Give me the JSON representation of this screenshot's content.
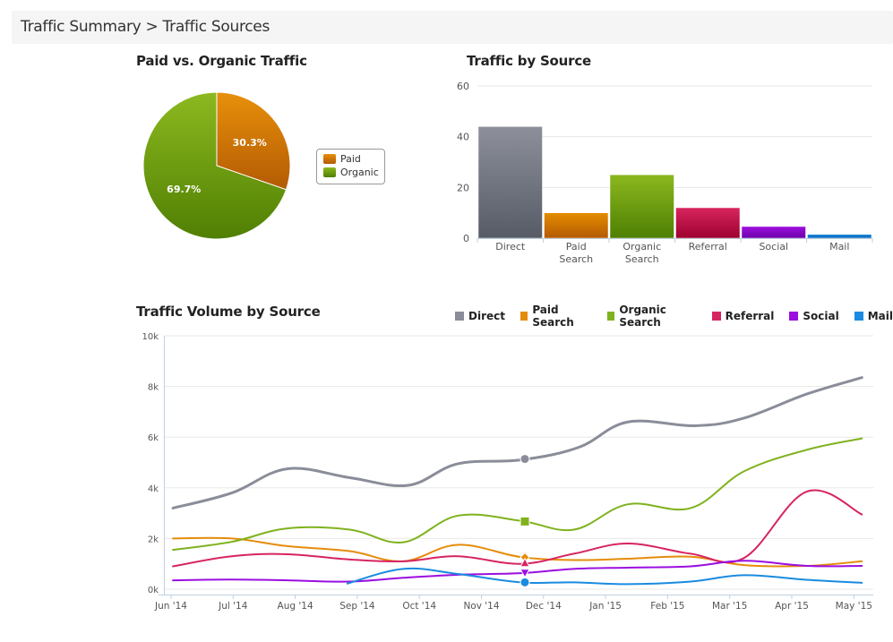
{
  "breadcrumb": {
    "text": "Traffic Summary > Traffic Sources"
  },
  "colors": {
    "direct": "#8a8d99",
    "paid": "#e58c0a",
    "organic": "#7fb21e",
    "referral": "#d62561",
    "social": "#9b0ee0",
    "mail": "#1a8be0",
    "grid": "#e6e6e6",
    "axis": "#c0d0e0"
  },
  "chart_data": [
    {
      "type": "pie",
      "title": "Paid vs. Organic Traffic",
      "slices": [
        {
          "name": "Paid",
          "value": 30.3,
          "label": "30.3%"
        },
        {
          "name": "Organic",
          "value": 69.7,
          "label": "69.7%"
        }
      ],
      "legend": {
        "entries": [
          "Paid",
          "Organic"
        ],
        "position": "right"
      }
    },
    {
      "type": "bar",
      "title": "Traffic by Source",
      "categories": [
        "Direct",
        "Paid Search",
        "Organic Search",
        "Referral",
        "Social",
        "Mail"
      ],
      "category_lines": [
        [
          "Direct"
        ],
        [
          "Paid",
          "Search"
        ],
        [
          "Organic",
          "Search"
        ],
        [
          "Referral"
        ],
        [
          "Social"
        ],
        [
          "Mail"
        ]
      ],
      "values": [
        44,
        10,
        25,
        12,
        4.6,
        1.5
      ],
      "ylim": [
        0,
        60
      ],
      "yticks": [
        0,
        20,
        40,
        60
      ],
      "ytick_labels": [
        "0",
        "20",
        "40",
        "60"
      ],
      "grid": true,
      "xlabel": "",
      "ylabel": ""
    },
    {
      "type": "line",
      "title": "Traffic Volume by Source",
      "x_unit": "months since Jun '14",
      "xticks": [
        0,
        1,
        2,
        3,
        4,
        5,
        6,
        7,
        8,
        9,
        10,
        11
      ],
      "xtick_labels": [
        "Jun '14",
        "Jul '14",
        "Aug '14",
        "Sep '14",
        "Oct '14",
        "Nov '14",
        "Dec '14",
        "Jan '15",
        "Feb '15",
        "Mar '15",
        "Apr '15",
        "May '15"
      ],
      "ylim": [
        0,
        10000
      ],
      "yticks": [
        0,
        2000,
        4000,
        6000,
        8000,
        10000
      ],
      "ytick_labels": [
        "0k",
        "2k",
        "4k",
        "6k",
        "8k",
        "10k"
      ],
      "grid": true,
      "legend": {
        "position": "top-right"
      },
      "highlight_x": 5.7,
      "series": [
        {
          "name": "Direct",
          "key": "direct",
          "marker": "circle",
          "x": [
            0.03,
            0.98,
            1.87,
            2.88,
            3.82,
            4.62,
            5.63,
            6.57,
            7.36,
            8.44,
            9.23,
            10.24,
            11.13
          ],
          "y": [
            3200,
            3800,
            4750,
            4400,
            4100,
            4950,
            5100,
            5600,
            6600,
            6450,
            6750,
            7700,
            8350
          ]
        },
        {
          "name": "Paid Search",
          "key": "paid",
          "marker": "diamond",
          "x": [
            0.03,
            0.98,
            1.87,
            2.88,
            3.74,
            4.62,
            5.63,
            6.49,
            7.36,
            8.37,
            9.23,
            10.24,
            11.13
          ],
          "y": [
            2000,
            2000,
            1700,
            1500,
            1100,
            1750,
            1270,
            1150,
            1200,
            1280,
            950,
            920,
            1100
          ]
        },
        {
          "name": "Organic Search",
          "key": "organic",
          "marker": "square",
          "x": [
            0.03,
            0.98,
            1.87,
            2.88,
            3.74,
            4.62,
            5.63,
            6.49,
            7.36,
            8.37,
            9.23,
            10.24,
            11.13
          ],
          "y": [
            1550,
            1870,
            2400,
            2350,
            1850,
            2900,
            2700,
            2350,
            3350,
            3200,
            4650,
            5500,
            5950
          ]
        },
        {
          "name": "Referral",
          "key": "referral",
          "marker": "triangle",
          "x": [
            0.03,
            0.98,
            1.87,
            2.88,
            3.74,
            4.62,
            5.63,
            6.49,
            7.36,
            8.37,
            9.23,
            10.24,
            11.13
          ],
          "y": [
            900,
            1300,
            1380,
            1170,
            1100,
            1300,
            1000,
            1400,
            1800,
            1400,
            1230,
            3850,
            2950
          ]
        },
        {
          "name": "Social",
          "key": "social",
          "marker": "triangle-down",
          "x": [
            0.03,
            0.98,
            1.87,
            2.88,
            3.74,
            4.62,
            5.63,
            6.49,
            7.36,
            8.37,
            9.23,
            10.24,
            11.13
          ],
          "y": [
            350,
            380,
            350,
            300,
            450,
            570,
            630,
            800,
            850,
            900,
            1120,
            920,
            920
          ]
        },
        {
          "name": "Mail",
          "key": "mail",
          "marker": "circle",
          "x": [
            2.84,
            3.74,
            4.62,
            5.63,
            6.49,
            7.36,
            8.37,
            9.23,
            10.24,
            11.13
          ],
          "y": [
            220,
            800,
            600,
            270,
            270,
            200,
            300,
            550,
            370,
            250
          ]
        }
      ]
    }
  ]
}
